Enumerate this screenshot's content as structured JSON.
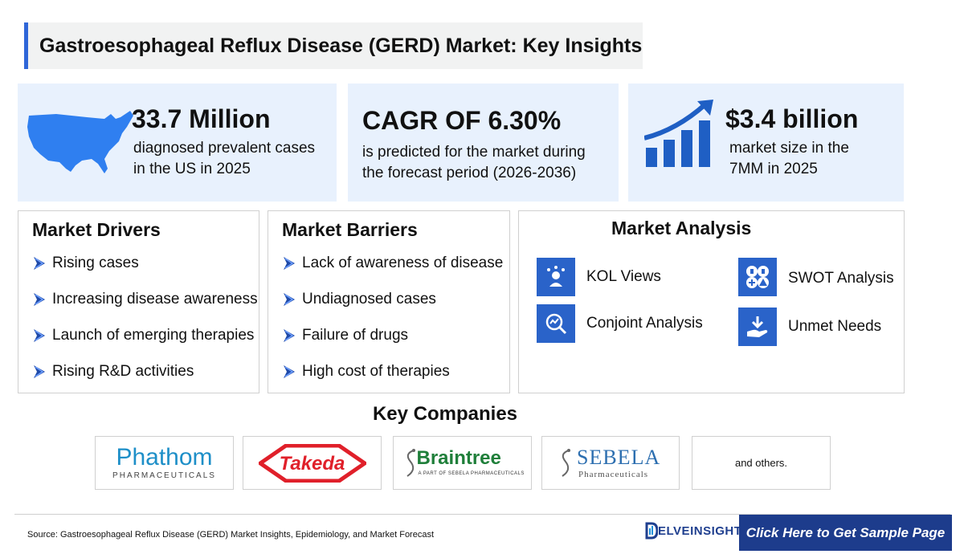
{
  "title": "Gastroesophageal Reflux Disease (GERD) Market: Key Insights",
  "stats": [
    {
      "value": "33.7 Million",
      "line1": "diagnosed prevalent cases",
      "line2": "in the US in 2025",
      "icon": "us-map-icon"
    },
    {
      "value": "CAGR OF 6.30%",
      "line1": "is predicted for the market during",
      "line2": "the forecast period (2026-2036)"
    },
    {
      "value": "$3.4 billion",
      "line1": "market size in the",
      "line2": "7MM in 2025",
      "icon": "growth-chart-icon"
    }
  ],
  "drivers": {
    "title": "Market Drivers",
    "items": [
      "Rising cases",
      "Increasing disease awareness",
      "Launch of emerging therapies",
      "Rising R&D activities"
    ]
  },
  "barriers": {
    "title": "Market Barriers",
    "items": [
      "Lack of awareness of disease",
      "Undiagnosed cases",
      "Failure of drugs",
      "High cost of therapies"
    ]
  },
  "analysis": {
    "title": "Market Analysis",
    "items": [
      "KOL Views",
      "SWOT Analysis",
      "Conjoint Analysis",
      "Unmet Needs"
    ]
  },
  "companies": {
    "title": "Key Companies",
    "phathom": {
      "name": "Phathom",
      "sub": "PHARMACEUTICALS"
    },
    "takeda": {
      "name": "Takeda"
    },
    "braintree": {
      "name": "Braintree",
      "sub": "A PART OF SEBELA PHARMACEUTICALS"
    },
    "sebela": {
      "name": "SEBELA",
      "sub": "Pharmaceuticals"
    },
    "others": "and others."
  },
  "footer": {
    "source": "Source: Gastroesophageal Reflux Disease (GERD) Market Insights, Epidemiology, and Market Forecast",
    "brand": "ELVEINSIGHT",
    "cta": "Click Here to Get Sample Page"
  },
  "colors": {
    "accent": "#2f66d8",
    "card_bg": "#e8f1fd",
    "icon_blue": "#2a63c9",
    "cta_bg": "#1d3c8c"
  }
}
